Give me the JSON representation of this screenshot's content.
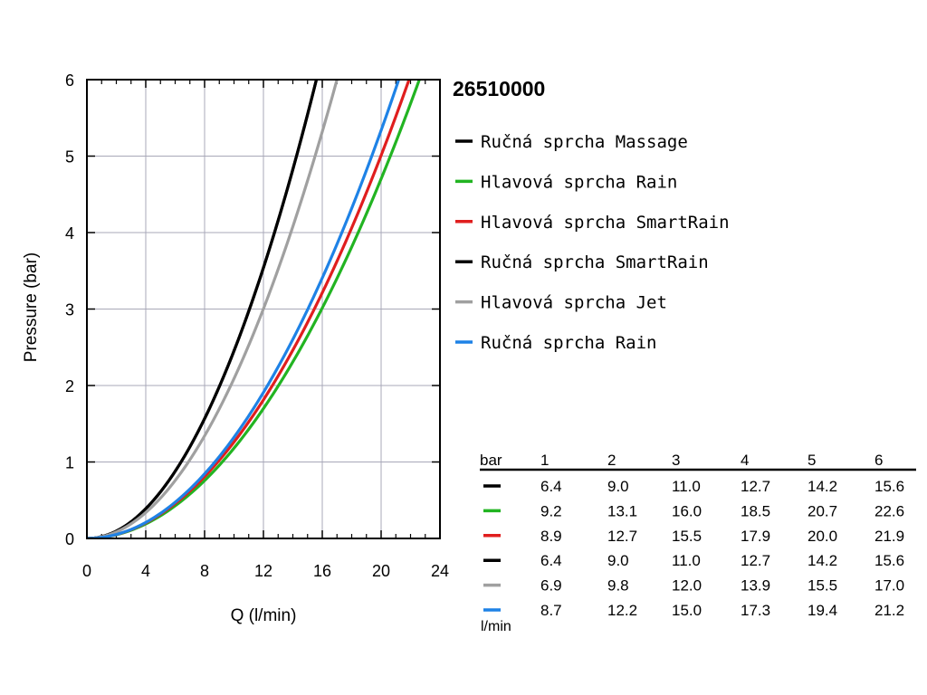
{
  "chart_data": {
    "type": "line",
    "title": "26510000",
    "xlabel": "Q (l/min)",
    "ylabel": "Pressure (bar)",
    "xlim": [
      0,
      24
    ],
    "ylim": [
      0,
      6
    ],
    "x_ticks": [
      "0",
      "4",
      "8",
      "12",
      "16",
      "20",
      "24"
    ],
    "y_ticks": [
      "0",
      "1",
      "2",
      "3",
      "4",
      "5",
      "6"
    ],
    "grid": true,
    "legend_position": "right",
    "series": [
      {
        "name": "Ručná sprcha Massage",
        "color": "#000000",
        "pressure": [
          1,
          2,
          3,
          4,
          5,
          6
        ],
        "flow": [
          6.4,
          9.0,
          11.0,
          12.7,
          14.2,
          15.6
        ]
      },
      {
        "name": "Hlavová sprcha Rain",
        "color": "#22b422",
        "pressure": [
          1,
          2,
          3,
          4,
          5,
          6
        ],
        "flow": [
          9.2,
          13.1,
          16.0,
          18.5,
          20.7,
          22.6
        ]
      },
      {
        "name": "Hlavová sprcha SmartRain",
        "color": "#e01e1e",
        "pressure": [
          1,
          2,
          3,
          4,
          5,
          6
        ],
        "flow": [
          8.9,
          12.7,
          15.5,
          17.9,
          20.0,
          21.9
        ]
      },
      {
        "name": "Ručná sprcha SmartRain",
        "color": "#000000",
        "pressure": [
          1,
          2,
          3,
          4,
          5,
          6
        ],
        "flow": [
          6.4,
          9.0,
          11.0,
          12.7,
          14.2,
          15.6
        ]
      },
      {
        "name": "Hlavová sprcha Jet",
        "color": "#a0a0a0",
        "pressure": [
          1,
          2,
          3,
          4,
          5,
          6
        ],
        "flow": [
          6.9,
          9.8,
          12.0,
          13.9,
          15.5,
          17.0
        ]
      },
      {
        "name": "Ručná sprcha Rain",
        "color": "#1e82e6",
        "pressure": [
          1,
          2,
          3,
          4,
          5,
          6
        ],
        "flow": [
          8.7,
          12.2,
          15.0,
          17.3,
          19.4,
          21.2
        ]
      }
    ]
  },
  "table": {
    "header_label": "bar",
    "columns": [
      "1",
      "2",
      "3",
      "4",
      "5",
      "6"
    ],
    "unit_label": "l/min",
    "rows": [
      [
        "6.4",
        "9.0",
        "11.0",
        "12.7",
        "14.2",
        "15.6"
      ],
      [
        "9.2",
        "13.1",
        "16.0",
        "18.5",
        "20.7",
        "22.6"
      ],
      [
        "8.9",
        "12.7",
        "15.5",
        "17.9",
        "20.0",
        "21.9"
      ],
      [
        "6.4",
        "9.0",
        "11.0",
        "12.7",
        "14.2",
        "15.6"
      ],
      [
        "6.9",
        "9.8",
        "12.0",
        "13.9",
        "15.5",
        "17.0"
      ],
      [
        "8.7",
        "12.2",
        "15.0",
        "17.3",
        "19.4",
        "21.2"
      ]
    ]
  }
}
